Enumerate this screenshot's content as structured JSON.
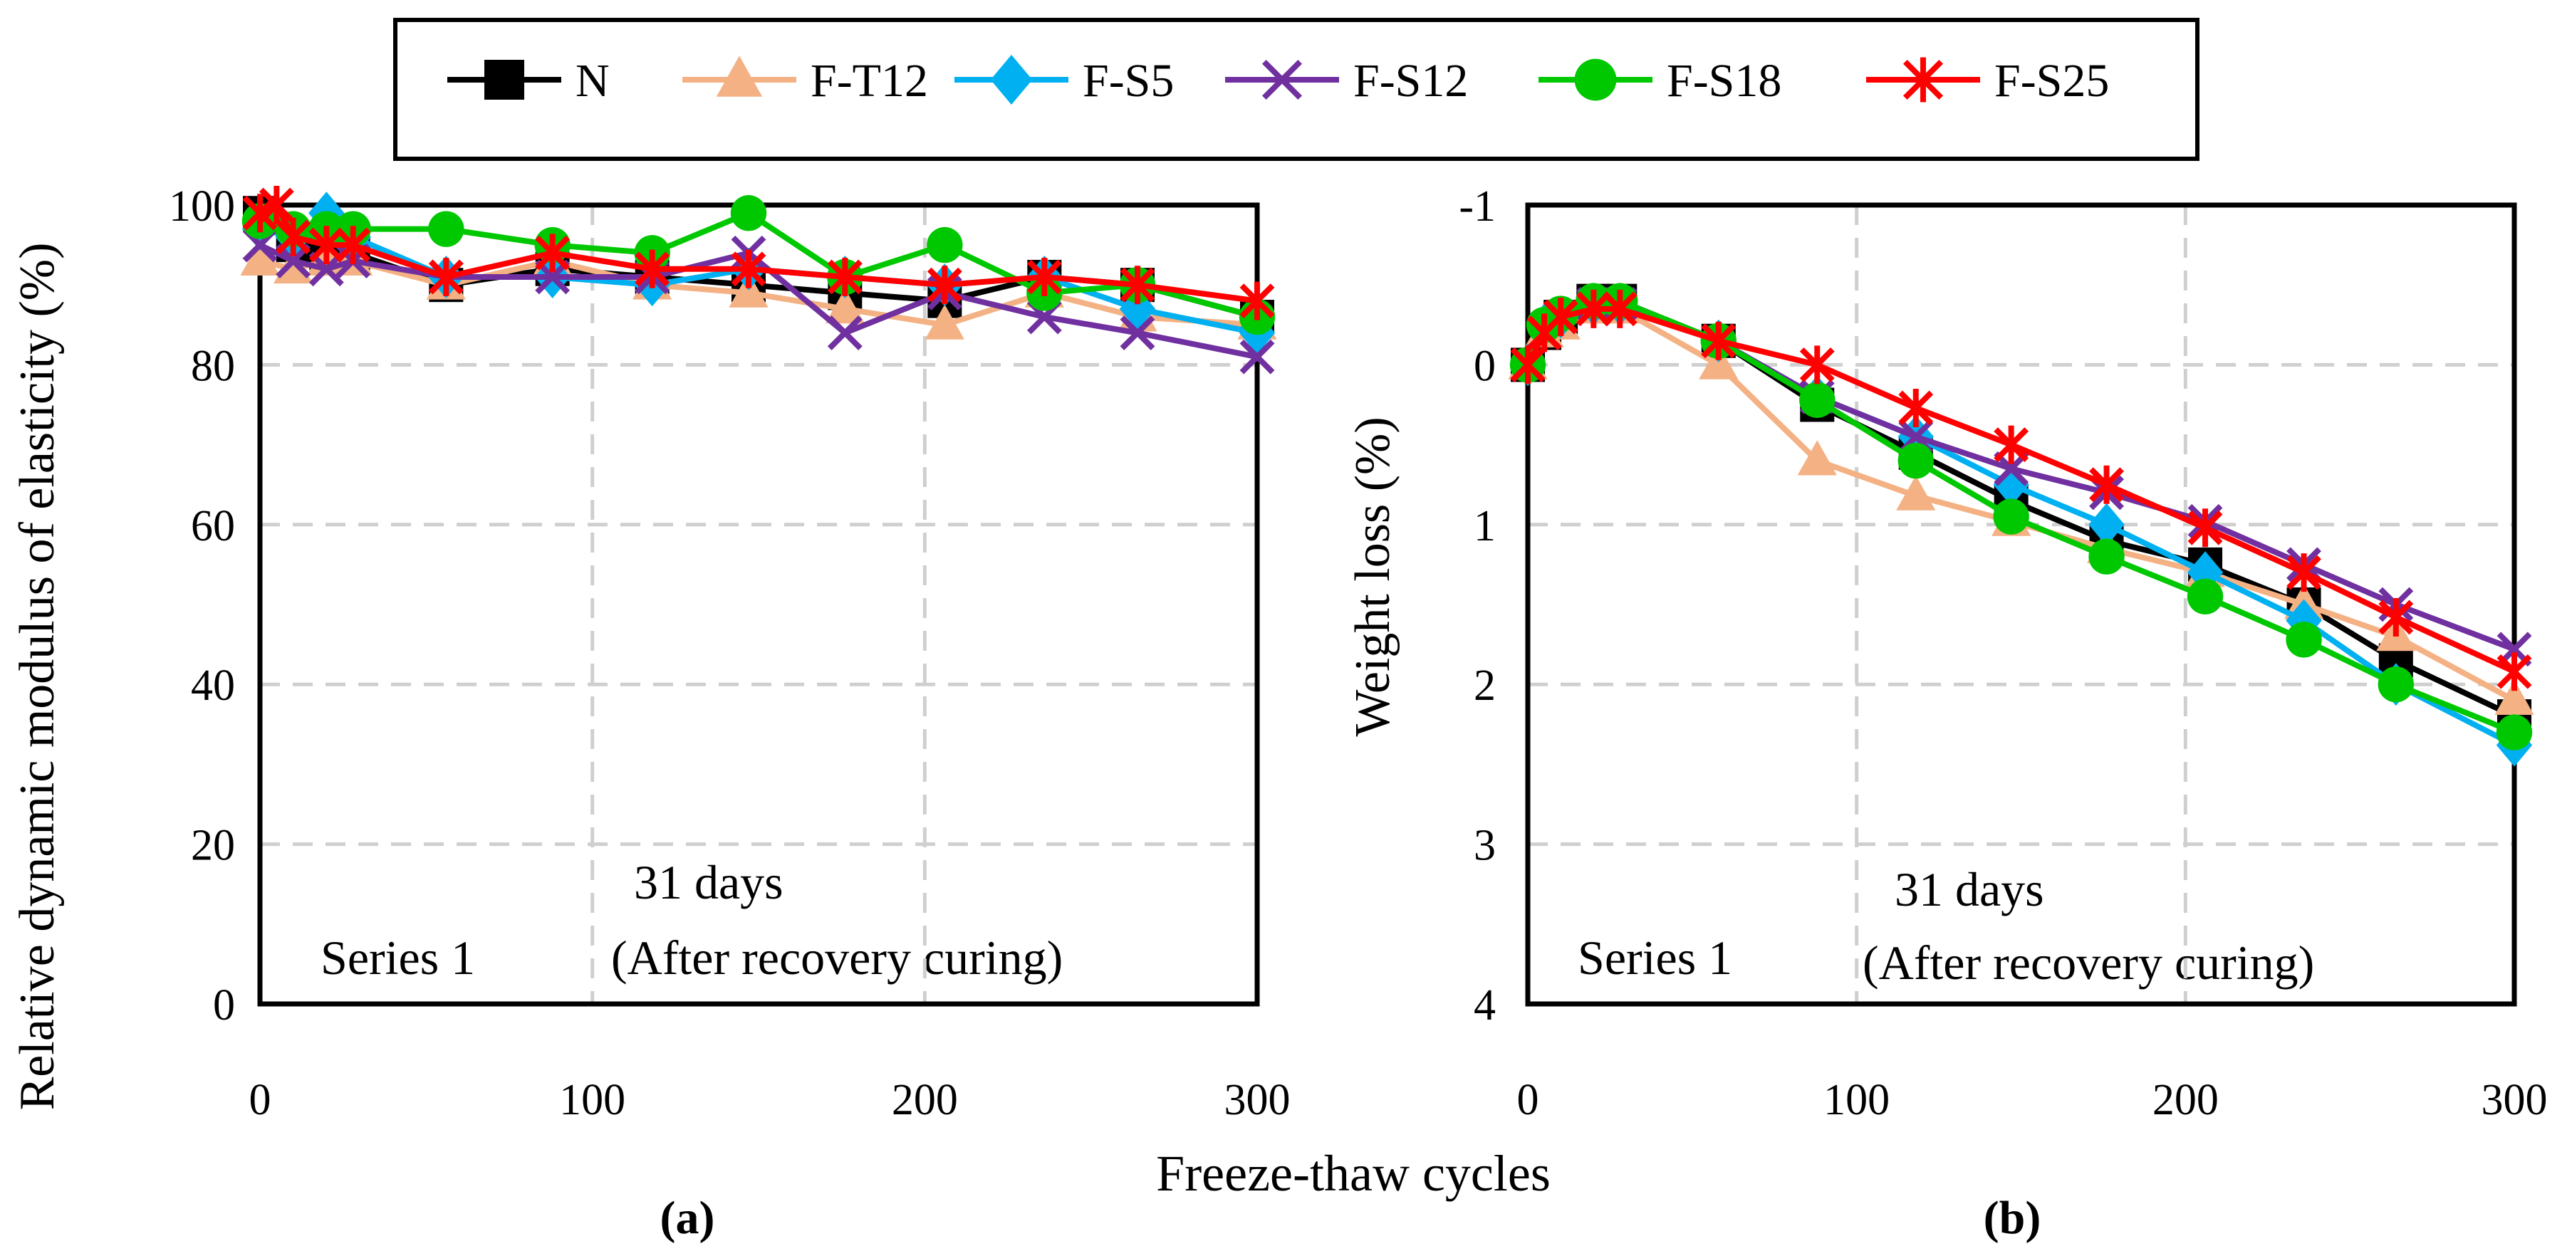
{
  "colors": {
    "N": "#000000",
    "F-T12": "#f4b183",
    "F-S5": "#00b0f0",
    "F-S12": "#7030a0",
    "F-S18": "#00c800",
    "F-S25": "#ff0000"
  },
  "markers": {
    "N": "square",
    "F-T12": "triangle",
    "F-S5": "diamond",
    "F-S12": "x",
    "F-S18": "circle",
    "F-S25": "star"
  },
  "legend": [
    "N",
    "F-T12",
    "F-S5",
    "F-S12",
    "F-S18",
    "F-S25"
  ],
  "xlabel": "Freeze-thaw  cycles",
  "chart_data": [
    {
      "id": "a",
      "type": "line",
      "panel_label": "(a)",
      "ylabel": "Relative dynamic modulus of elasticity (%)",
      "xlim": [
        0,
        300
      ],
      "ylim": [
        0,
        100
      ],
      "y_inverted": false,
      "xticks": [
        0,
        100,
        200,
        300
      ],
      "yticks": [
        0,
        20,
        40,
        60,
        80,
        100
      ],
      "ytick_labels": [
        "0",
        "20",
        "40",
        "60",
        "80",
        "100"
      ],
      "annotations": [
        "Series 1",
        "31 days",
        "(After recovery curing)"
      ],
      "series": [
        {
          "name": "N",
          "x": [
            0,
            10,
            20,
            28,
            56,
            88,
            118,
            147,
            176,
            206,
            236,
            264,
            300
          ],
          "y": [
            99,
            95,
            94,
            94,
            90,
            92,
            91,
            90,
            89,
            88,
            91,
            90,
            86
          ]
        },
        {
          "name": "F-T12",
          "x": [
            0,
            10,
            20,
            28,
            56,
            88,
            118,
            147,
            176,
            206,
            236,
            264,
            300
          ],
          "y": [
            93,
            92,
            93,
            93,
            90,
            93,
            90,
            89,
            87,
            85,
            89,
            86,
            85
          ]
        },
        {
          "name": "F-S5",
          "x": [
            0,
            10,
            20,
            28,
            56,
            88,
            118,
            147,
            176,
            206,
            236,
            264,
            300
          ],
          "y": [
            97,
            96,
            99,
            96,
            91,
            91,
            90,
            92,
            91,
            90,
            91,
            87,
            84
          ]
        },
        {
          "name": "F-S12",
          "x": [
            0,
            10,
            20,
            28,
            56,
            88,
            118,
            147,
            176,
            206,
            236,
            264,
            300
          ],
          "y": [
            95,
            93,
            92,
            93,
            91,
            91,
            91,
            94,
            84,
            89,
            86,
            84,
            81
          ]
        },
        {
          "name": "F-S18",
          "x": [
            0,
            10,
            20,
            28,
            56,
            88,
            118,
            147,
            176,
            206,
            236,
            264,
            300
          ],
          "y": [
            98,
            97,
            97,
            97,
            97,
            95,
            94,
            99,
            91,
            95,
            89,
            90,
            86
          ]
        },
        {
          "name": "F-S25",
          "x": [
            0,
            5,
            10,
            20,
            28,
            56,
            88,
            118,
            147,
            176,
            206,
            236,
            264,
            300
          ],
          "y": [
            99,
            100,
            96,
            95,
            95,
            91,
            94,
            92,
            92,
            91,
            90,
            91,
            90,
            88
          ]
        }
      ]
    },
    {
      "id": "b",
      "type": "line",
      "panel_label": "(b)",
      "ylabel": "Weight loss (%)",
      "xlim": [
        0,
        300
      ],
      "ylim": [
        -1,
        4
      ],
      "y_inverted": true,
      "xticks": [
        0,
        100,
        200,
        300
      ],
      "yticks": [
        -1,
        0,
        1,
        2,
        3,
        4
      ],
      "ytick_labels": [
        "-1",
        "0",
        "1",
        "2",
        "3",
        "4"
      ],
      "annotations": [
        "Series 1",
        "31 days",
        "(After recovery curing)"
      ],
      "series": [
        {
          "name": "N",
          "x": [
            0,
            5,
            10,
            20,
            28,
            58,
            88,
            118,
            147,
            176,
            206,
            236,
            264,
            300
          ],
          "y": [
            0,
            -0.2,
            -0.3,
            -0.4,
            -0.4,
            -0.15,
            0.25,
            0.55,
            0.85,
            1.1,
            1.25,
            1.5,
            1.85,
            2.2
          ]
        },
        {
          "name": "F-T12",
          "x": [
            0,
            5,
            10,
            20,
            28,
            58,
            88,
            118,
            147,
            176,
            206,
            236,
            264,
            300
          ],
          "y": [
            0,
            -0.2,
            -0.25,
            -0.35,
            -0.35,
            0,
            0.6,
            0.82,
            0.98,
            1.15,
            1.3,
            1.5,
            1.7,
            2.1
          ]
        },
        {
          "name": "F-S5",
          "x": [
            0,
            5,
            10,
            20,
            28,
            58,
            88,
            118,
            147,
            176,
            206,
            236,
            264,
            300
          ],
          "y": [
            0,
            -0.25,
            -0.3,
            -0.38,
            -0.38,
            -0.15,
            0.2,
            0.45,
            0.75,
            1.0,
            1.3,
            1.6,
            2.0,
            2.38
          ]
        },
        {
          "name": "F-S12",
          "x": [
            0,
            5,
            10,
            20,
            28,
            58,
            88,
            118,
            147,
            176,
            206,
            236,
            264,
            300
          ],
          "y": [
            0,
            -0.2,
            -0.3,
            -0.38,
            -0.38,
            -0.15,
            0.2,
            0.45,
            0.65,
            0.8,
            0.98,
            1.25,
            1.5,
            1.78
          ]
        },
        {
          "name": "F-S18",
          "x": [
            0,
            5,
            10,
            20,
            28,
            58,
            88,
            118,
            147,
            176,
            206,
            236,
            264,
            300
          ],
          "y": [
            0,
            -0.25,
            -0.32,
            -0.4,
            -0.4,
            -0.15,
            0.22,
            0.6,
            0.95,
            1.2,
            1.45,
            1.72,
            2.0,
            2.3
          ]
        },
        {
          "name": "F-S25",
          "x": [
            0,
            5,
            10,
            20,
            28,
            58,
            88,
            118,
            147,
            176,
            206,
            236,
            264,
            300
          ],
          "y": [
            0,
            -0.2,
            -0.3,
            -0.35,
            -0.35,
            -0.15,
            0,
            0.27,
            0.5,
            0.75,
            1.02,
            1.3,
            1.58,
            1.92
          ]
        }
      ]
    }
  ]
}
